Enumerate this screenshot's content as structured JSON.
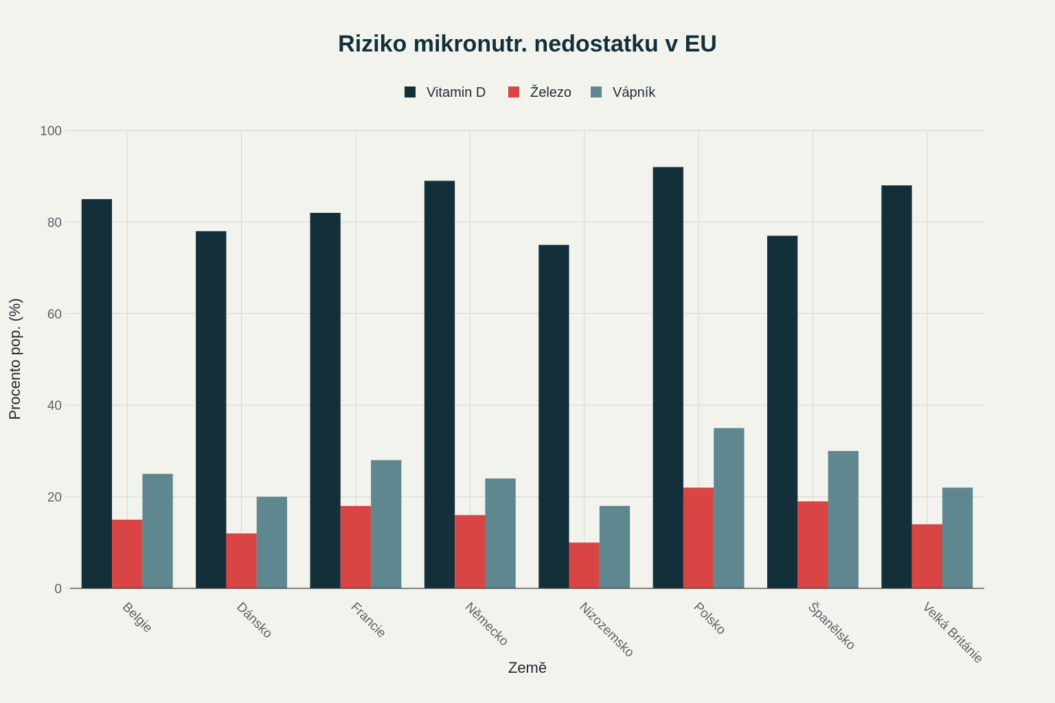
{
  "chart_data": {
    "type": "bar",
    "title": "Riziko mikronutr. nedostatku v EU",
    "xlabel": "Země",
    "ylabel": "Procento pop. (%)",
    "ylim": [
      0,
      100
    ],
    "yticks": [
      0,
      20,
      40,
      60,
      80,
      100
    ],
    "categories": [
      "Belgie",
      "Dánsko",
      "Francie",
      "Německo",
      "Nizozemsko",
      "Polsko",
      "Španělsko",
      "Velká Británie"
    ],
    "series": [
      {
        "name": "Vitamin D",
        "color": "#13303a",
        "values": [
          85,
          78,
          82,
          89,
          75,
          92,
          77,
          88
        ]
      },
      {
        "name": "Železo",
        "color": "#d94444",
        "values": [
          15,
          12,
          18,
          16,
          10,
          22,
          19,
          14
        ]
      },
      {
        "name": "Vápník",
        "color": "#5e878f",
        "values": [
          25,
          20,
          28,
          24,
          18,
          35,
          30,
          22
        ]
      }
    ],
    "grid": true,
    "legend_position": "top-center"
  }
}
